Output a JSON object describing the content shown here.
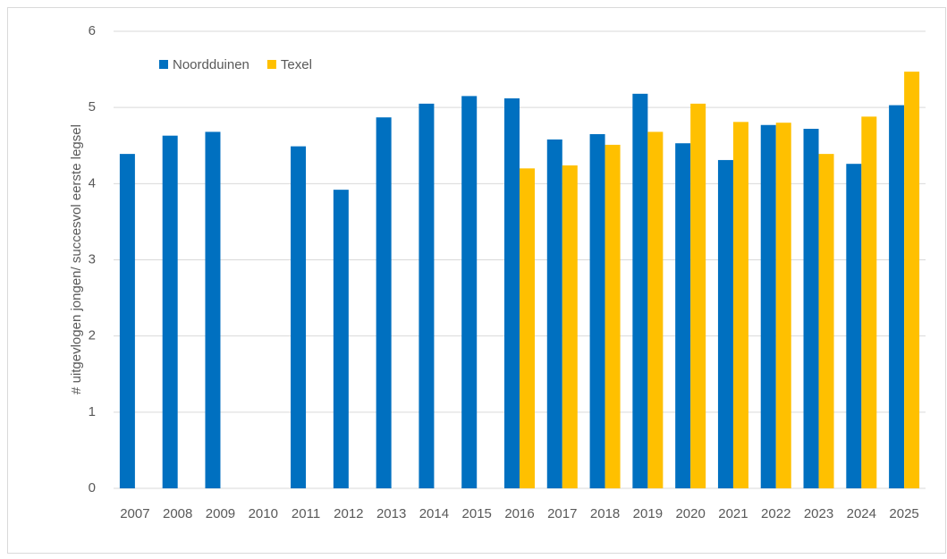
{
  "chart_data": {
    "type": "bar",
    "y_axis_label": "# uitgevlogen jongen/ succesvol eerste legsel",
    "categories": [
      "2007",
      "2008",
      "2009",
      "2010",
      "2011",
      "2012",
      "2013",
      "2014",
      "2015",
      "2016",
      "2017",
      "2018",
      "2019",
      "2020",
      "2021",
      "2022",
      "2023",
      "2024",
      "2025"
    ],
    "series": [
      {
        "name": "Noordduinen",
        "color": "#0070c0",
        "values": [
          4.39,
          4.63,
          4.68,
          null,
          4.49,
          3.92,
          4.87,
          5.05,
          5.15,
          5.12,
          4.58,
          4.65,
          5.18,
          4.53,
          4.31,
          4.77,
          4.72,
          4.26,
          5.03
        ]
      },
      {
        "name": "Texel",
        "color": "#ffc000",
        "values": [
          null,
          null,
          null,
          null,
          null,
          null,
          null,
          null,
          null,
          4.2,
          4.24,
          4.51,
          4.68,
          5.05,
          4.81,
          4.8,
          4.39,
          4.88,
          5.47
        ]
      }
    ],
    "ylim": [
      0,
      6
    ],
    "yticks": [
      0,
      1,
      2,
      3,
      4,
      5,
      6
    ],
    "grid": true,
    "legend": "top-left"
  }
}
